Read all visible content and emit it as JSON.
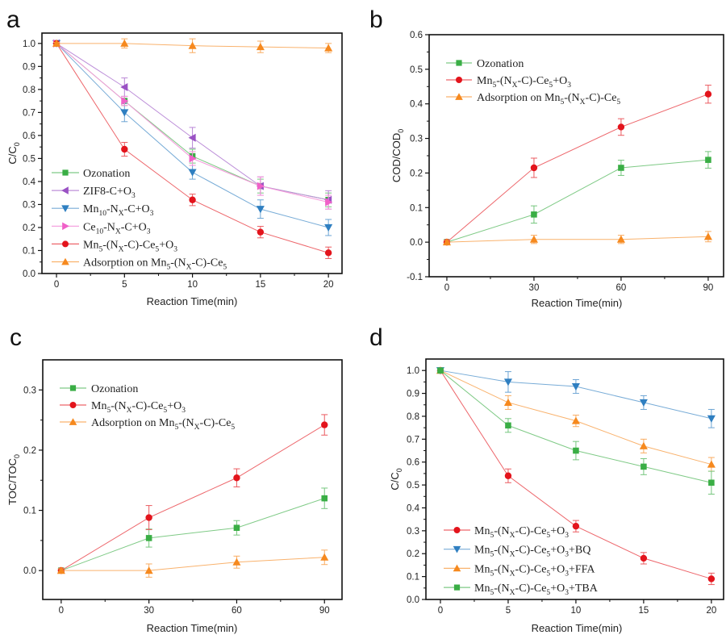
{
  "chart_data": [
    {
      "panel": "a",
      "type": "line",
      "xlabel": "Reaction Time(min)",
      "ylabel": "C/C_{0}",
      "x": [
        0,
        5,
        10,
        15,
        20
      ],
      "xlim": [
        -1.07,
        21.0
      ],
      "ylim": [
        0.0,
        1.045
      ],
      "xticks": [
        "0",
        "5",
        "10",
        "15",
        "20"
      ],
      "xtick_values": [
        0,
        5,
        10,
        15,
        20
      ],
      "yticks": [
        "0.0",
        "0.1",
        "0.2",
        "0.3",
        "0.4",
        "0.5",
        "0.6",
        "0.7",
        "0.8",
        "0.9",
        "1.0"
      ],
      "ytick_values": [
        0,
        0.1,
        0.2,
        0.3,
        0.4,
        0.5,
        0.6,
        0.7,
        0.8,
        0.9,
        1.0
      ],
      "legend_position": "bottom-left",
      "series": [
        {
          "name": "Ozonation",
          "marker": "square",
          "color": "#3aae45",
          "values": [
            1.0,
            0.75,
            0.51,
            0.38,
            0.32
          ],
          "errors": [
            0.005,
            0.02,
            0.03,
            0.03,
            0.03
          ]
        },
        {
          "name": "ZIF8-C+O_{3}",
          "marker": "tri-left",
          "color": "#9a52c4",
          "values": [
            1.0,
            0.81,
            0.59,
            0.38,
            0.32
          ],
          "errors": [
            0.005,
            0.04,
            0.045,
            0.04,
            0.04
          ]
        },
        {
          "name": "Mn_{10}-N_{X}-C+O_{3}",
          "marker": "tri-down",
          "color": "#2f7fc1",
          "values": [
            1.0,
            0.7,
            0.44,
            0.28,
            0.2
          ],
          "errors": [
            0.005,
            0.04,
            0.03,
            0.04,
            0.035
          ]
        },
        {
          "name": "Ce_{10}-N_{X}-C+O_{3}",
          "marker": "tri-right",
          "color": "#f060c8",
          "values": [
            1.0,
            0.75,
            0.5,
            0.38,
            0.31
          ],
          "errors": [
            0.005,
            0.02,
            0.03,
            0.04,
            0.03
          ]
        },
        {
          "name": "Mn_{5}-(N_{X}-C)-Ce_{5}+O_{3}",
          "marker": "circle",
          "color": "#e3141c",
          "values": [
            1.0,
            0.54,
            0.32,
            0.18,
            0.09
          ],
          "errors": [
            0.005,
            0.03,
            0.025,
            0.025,
            0.025
          ]
        },
        {
          "name": "Adsorption on Mn_{5}-(N_{X}-C)-Ce_{5}",
          "marker": "tri-up",
          "color": "#f6891e",
          "values": [
            1.0,
            1.0,
            0.99,
            0.985,
            0.98
          ],
          "errors": [
            0.005,
            0.02,
            0.03,
            0.025,
            0.02
          ]
        }
      ]
    },
    {
      "panel": "b",
      "type": "line",
      "xlabel": "Reaction Time(min)",
      "ylabel": "COD/COD_{0}",
      "x": [
        0,
        30,
        60,
        90
      ],
      "xlim": [
        -6.1,
        95.3
      ],
      "ylim": [
        -0.1,
        0.6
      ],
      "xticks": [
        "0",
        "30",
        "60",
        "90"
      ],
      "xtick_values": [
        0,
        30,
        60,
        90
      ],
      "yticks": [
        "-0.1",
        "0.0",
        "0.1",
        "0.2",
        "0.3",
        "0.4",
        "0.5",
        "0.6"
      ],
      "ytick_values": [
        -0.1,
        0,
        0.1,
        0.2,
        0.3,
        0.4,
        0.5,
        0.6
      ],
      "legend_position": "top-left",
      "series": [
        {
          "name": "Ozonation",
          "marker": "square",
          "color": "#3aae45",
          "values": [
            0.0,
            0.08,
            0.215,
            0.238
          ],
          "errors": [
            0.005,
            0.025,
            0.022,
            0.024
          ]
        },
        {
          "name": "Mn_{5}-(N_{X}-C)-Ce_{5}+O_{3}",
          "marker": "circle",
          "color": "#e3141c",
          "values": [
            0.0,
            0.215,
            0.333,
            0.428
          ],
          "errors": [
            0.005,
            0.028,
            0.024,
            0.026
          ]
        },
        {
          "name": "Adsorption on Mn_{5}-(N_{X}-C)-Ce_{5}",
          "marker": "tri-up",
          "color": "#f6891e",
          "values": [
            0.0,
            0.008,
            0.008,
            0.016
          ],
          "errors": [
            0.005,
            0.012,
            0.012,
            0.015
          ]
        }
      ]
    },
    {
      "panel": "c",
      "type": "line",
      "xlabel": "Reaction Time(min)",
      "ylabel": "TOC/TOC_{0}",
      "x": [
        0,
        30,
        60,
        90
      ],
      "xlim": [
        -6.3,
        96.0
      ],
      "ylim": [
        -0.048,
        0.35
      ],
      "xticks": [
        "0",
        "30",
        "60",
        "90"
      ],
      "xtick_values": [
        0,
        30,
        60,
        90
      ],
      "yticks": [
        "0.0",
        "0.1",
        "0.2",
        "0.3"
      ],
      "ytick_values": [
        0,
        0.1,
        0.2,
        0.3
      ],
      "legend_position": "top-left",
      "series": [
        {
          "name": "Ozonation",
          "marker": "square",
          "color": "#3aae45",
          "values": [
            0.0,
            0.054,
            0.071,
            0.12
          ],
          "errors": [
            0.003,
            0.015,
            0.012,
            0.017
          ]
        },
        {
          "name": "Mn_{5}-(N_{X}-C)-Ce_{5}+O_{3}",
          "marker": "circle",
          "color": "#e3141c",
          "values": [
            0.0,
            0.088,
            0.154,
            0.242
          ],
          "errors": [
            0.003,
            0.02,
            0.015,
            0.017
          ]
        },
        {
          "name": "Adsorption on Mn_{5}-(N_{X}-C)-Ce_{5}",
          "marker": "tri-up",
          "color": "#f6891e",
          "values": [
            0.0,
            0.0,
            0.014,
            0.022
          ],
          "errors": [
            0.003,
            0.011,
            0.01,
            0.012
          ]
        }
      ]
    },
    {
      "panel": "d",
      "type": "line",
      "xlabel": "Reaction Time(min)",
      "ylabel": "C/C_{0}",
      "x": [
        0,
        5,
        10,
        15,
        20
      ],
      "xlim": [
        -1.07,
        20.9
      ],
      "ylim": [
        0.0,
        1.05
      ],
      "xticks": [
        "0",
        "5",
        "10",
        "15",
        "20"
      ],
      "xtick_values": [
        0,
        5,
        10,
        15,
        20
      ],
      "yticks": [
        "0.0",
        "0.1",
        "0.2",
        "0.3",
        "0.4",
        "0.5",
        "0.6",
        "0.7",
        "0.8",
        "0.9",
        "1.0"
      ],
      "ytick_values": [
        0,
        0.1,
        0.2,
        0.3,
        0.4,
        0.5,
        0.6,
        0.7,
        0.8,
        0.9,
        1.0
      ],
      "legend_position": "bottom-left",
      "series": [
        {
          "name": "Mn_{5}-(N_{X}-C)-Ce_{5}+O_{3}",
          "marker": "circle",
          "color": "#e3141c",
          "values": [
            1.0,
            0.54,
            0.32,
            0.18,
            0.09
          ],
          "errors": [
            0.005,
            0.03,
            0.025,
            0.025,
            0.025
          ]
        },
        {
          "name": "Mn_{5}-(N_{X}-C)-Ce_{5}+O_{3}+BQ",
          "marker": "tri-down",
          "color": "#2f7fc1",
          "values": [
            1.0,
            0.95,
            0.93,
            0.86,
            0.79
          ],
          "errors": [
            0.005,
            0.045,
            0.03,
            0.03,
            0.04
          ]
        },
        {
          "name": "Mn_{5}-(N_{X}-C)-Ce_{5}+O_{3}+FFA",
          "marker": "tri-up",
          "color": "#f6891e",
          "values": [
            1.0,
            0.86,
            0.78,
            0.67,
            0.59
          ],
          "errors": [
            0.005,
            0.03,
            0.025,
            0.03,
            0.03
          ]
        },
        {
          "name": "Mn_{5}-(N_{X}-C)-Ce_{5}+O_{3}+TBA",
          "marker": "square",
          "color": "#3aae45",
          "values": [
            1.0,
            0.76,
            0.65,
            0.58,
            0.51
          ],
          "errors": [
            0.005,
            0.03,
            0.04,
            0.035,
            0.05
          ]
        }
      ]
    }
  ]
}
